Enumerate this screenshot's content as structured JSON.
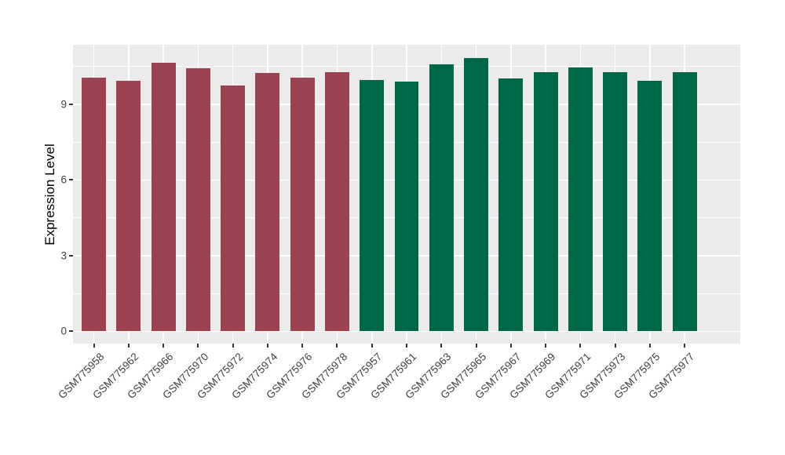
{
  "chart_data": {
    "type": "bar",
    "title": "",
    "xlabel": "",
    "ylabel": "Expression Level",
    "yticks": [
      0,
      3,
      6,
      9
    ],
    "ylim": [
      -0.49,
      11.36
    ],
    "grid": "on",
    "grid_major_y": [
      0,
      3,
      6,
      9
    ],
    "grid_minor_y": [
      1.5,
      4.5,
      7.5,
      10.5
    ],
    "legend_position": "none",
    "bar_width_fraction": 0.7,
    "colors": {
      "group1": "#9B4351",
      "group2": "#006848",
      "panel_background": "#EBEBEB",
      "gridline": "#FFFFFF",
      "tick_text": "#404040",
      "tick_mark": "#333333",
      "axis_title": "#000000"
    },
    "categories": [
      "GSM775958",
      "GSM775962",
      "GSM775966",
      "GSM775970",
      "GSM775972",
      "GSM775974",
      "GSM775976",
      "GSM775978",
      "GSM775957",
      "GSM775961",
      "GSM775963",
      "GSM775965",
      "GSM775967",
      "GSM775969",
      "GSM775971",
      "GSM775973",
      "GSM775975",
      "GSM775977"
    ],
    "values": [
      10.05,
      9.92,
      10.64,
      10.43,
      9.74,
      10.25,
      10.05,
      10.28,
      9.97,
      9.9,
      10.57,
      10.83,
      10.02,
      10.26,
      10.46,
      10.28,
      9.93,
      10.26
    ],
    "bars": [
      {
        "label": "GSM775958",
        "value": 10.05,
        "group": "group1"
      },
      {
        "label": "GSM775962",
        "value": 9.92,
        "group": "group1"
      },
      {
        "label": "GSM775966",
        "value": 10.64,
        "group": "group1"
      },
      {
        "label": "GSM775970",
        "value": 10.43,
        "group": "group1"
      },
      {
        "label": "GSM775972",
        "value": 9.74,
        "group": "group1"
      },
      {
        "label": "GSM775974",
        "value": 10.25,
        "group": "group1"
      },
      {
        "label": "GSM775976",
        "value": 10.05,
        "group": "group1"
      },
      {
        "label": "GSM775978",
        "value": 10.28,
        "group": "group1"
      },
      {
        "label": "GSM775957",
        "value": 9.97,
        "group": "group2"
      },
      {
        "label": "GSM775961",
        "value": 9.9,
        "group": "group2"
      },
      {
        "label": "GSM775963",
        "value": 10.57,
        "group": "group2"
      },
      {
        "label": "GSM775965",
        "value": 10.83,
        "group": "group2"
      },
      {
        "label": "GSM775967",
        "value": 10.02,
        "group": "group2"
      },
      {
        "label": "GSM775969",
        "value": 10.26,
        "group": "group2"
      },
      {
        "label": "GSM775971",
        "value": 10.46,
        "group": "group2"
      },
      {
        "label": "GSM775973",
        "value": 10.28,
        "group": "group2"
      },
      {
        "label": "GSM775975",
        "value": 9.93,
        "group": "group2"
      },
      {
        "label": "GSM775977",
        "value": 10.26,
        "group": "group2"
      }
    ]
  }
}
